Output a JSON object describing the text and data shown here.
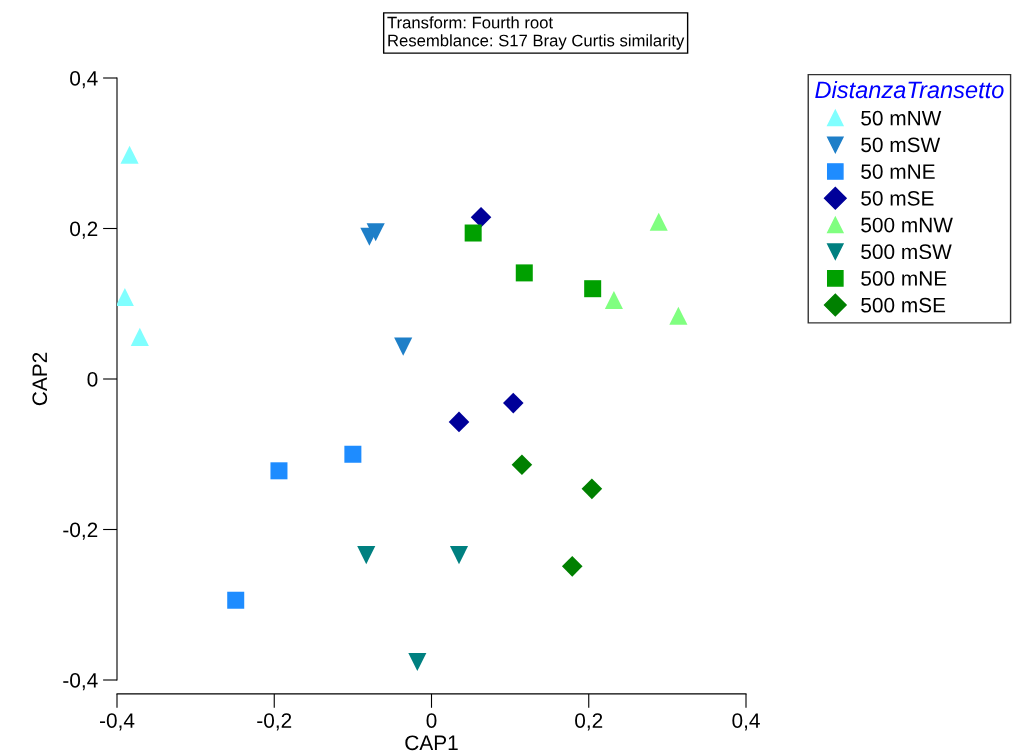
{
  "chart_data": {
    "type": "scatter",
    "xlabel": "CAP1",
    "ylabel": "CAP2",
    "legend_title": "DistanzaTransetto",
    "annotations": [
      "Transform: Fourth root",
      "Resemblance: S17 Bray Curtis similarity"
    ],
    "xlim": [
      -0.4,
      0.4
    ],
    "ylim": [
      -0.4,
      0.4
    ],
    "xticks": [
      {
        "value": -0.4,
        "label": "-0,4"
      },
      {
        "value": -0.2,
        "label": "-0,2"
      },
      0,
      {
        "value": 0.2,
        "label": "0,2"
      },
      {
        "value": 0.4,
        "label": "0,4"
      }
    ],
    "yticks": [
      {
        "value": -0.4,
        "label": "-0,4"
      },
      {
        "value": -0.2,
        "label": "-0,2"
      },
      0,
      {
        "value": 0.2,
        "label": "0,2"
      },
      {
        "value": 0.4,
        "label": "0,4"
      }
    ],
    "grid": false,
    "legend": "top right",
    "series": [
      {
        "name": "50 mNW",
        "color": "#80ffff",
        "marker": "triangle",
        "x": [
          -0.384,
          -0.39,
          -0.371
        ],
        "values": [
          0.298,
          0.109,
          0.056
        ]
      },
      {
        "name": "50 mSW",
        "color": "#1e7fc8",
        "marker": "triangle_down",
        "x": [
          -0.079,
          -0.071,
          -0.036
        ],
        "values": [
          0.189,
          0.195,
          0.043
        ]
      },
      {
        "name": "50 mNE",
        "color": "#1e8cff",
        "marker": "square",
        "x": [
          -0.249,
          -0.194,
          -0.1
        ],
        "values": [
          -0.294,
          -0.122,
          -0.1
        ]
      },
      {
        "name": "50 mSE",
        "color": "#000099",
        "marker": "diamond",
        "x": [
          0.063,
          0.035,
          0.104
        ],
        "values": [
          0.215,
          -0.057,
          -0.032
        ]
      },
      {
        "name": "500 mNW",
        "color": "#80ff80",
        "marker": "triangle",
        "x": [
          0.289,
          0.232,
          0.314
        ],
        "values": [
          0.209,
          0.105,
          0.084
        ]
      },
      {
        "name": "500 mSW",
        "color": "#008080",
        "marker": "triangle_down",
        "x": [
          -0.083,
          0.035,
          -0.018
        ],
        "values": [
          -0.234,
          -0.234,
          -0.376
        ]
      },
      {
        "name": "500 mNE",
        "color": "#00a000",
        "marker": "square",
        "x": [
          0.053,
          0.118,
          0.205
        ],
        "values": [
          0.194,
          0.141,
          0.12
        ]
      },
      {
        "name": "500 mSE",
        "color": "#008000",
        "marker": "diamond",
        "x": [
          0.115,
          0.204,
          0.179
        ],
        "values": [
          -0.114,
          -0.146,
          -0.249
        ]
      }
    ]
  }
}
